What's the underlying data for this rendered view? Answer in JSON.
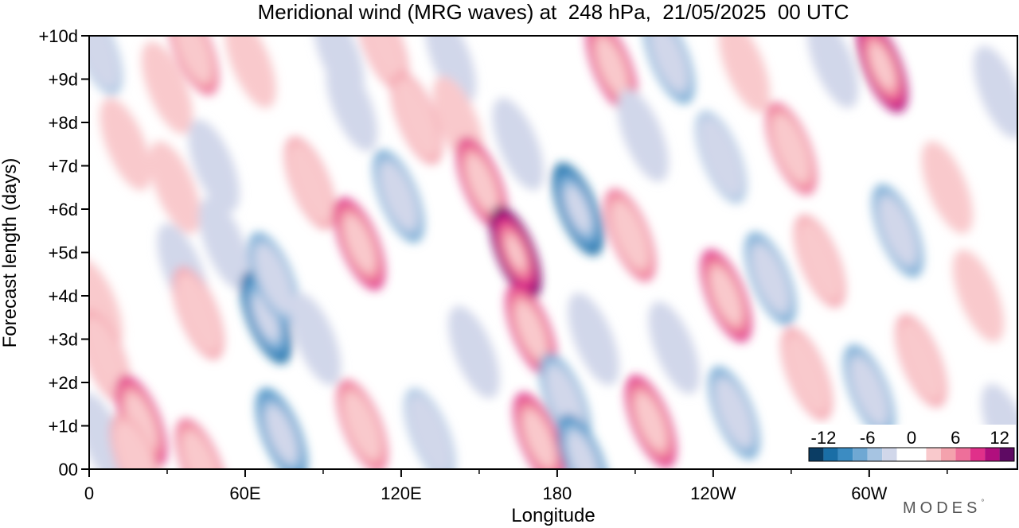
{
  "chart_data": {
    "type": "heatmap",
    "title": "Meridional wind (MRG waves) at  248 hPa,  21/05/2025  00 UTC",
    "xlabel": "Longitude",
    "ylabel": "Forecast length (days)",
    "x_ticks": [
      {
        "lon": 0,
        "label": "0"
      },
      {
        "lon": 60,
        "label": "60E"
      },
      {
        "lon": 120,
        "label": "120E"
      },
      {
        "lon": 180,
        "label": "180"
      },
      {
        "lon": 240,
        "label": "120W"
      },
      {
        "lon": 300,
        "label": "60W"
      }
    ],
    "xlim": [
      0,
      357
    ],
    "y_ticks": [
      {
        "day": 0,
        "label": "00"
      },
      {
        "day": 1,
        "label": "+1d"
      },
      {
        "day": 2,
        "label": "+2d"
      },
      {
        "day": 3,
        "label": "+3d"
      },
      {
        "day": 4,
        "label": "+4d"
      },
      {
        "day": 5,
        "label": "+5d"
      },
      {
        "day": 6,
        "label": "+6d"
      },
      {
        "day": 7,
        "label": "+7d"
      },
      {
        "day": 8,
        "label": "+8d"
      },
      {
        "day": 9,
        "label": "+9d"
      },
      {
        "day": 10,
        "label": "+10d"
      }
    ],
    "ylim": [
      0,
      10
    ],
    "colorbar": {
      "levels": [
        -14,
        -12,
        -10,
        -8,
        -6,
        -4,
        -2,
        2,
        4,
        6,
        8,
        10,
        12,
        14
      ],
      "colors": [
        "#0b3d64",
        "#1a6ea6",
        "#3c8cc2",
        "#6fa8d3",
        "#a6c4e2",
        "#d1d7ea",
        "#ffffff",
        "#f9c9cc",
        "#f4a2ad",
        "#ee6f9a",
        "#e0308a",
        "#b10f7e",
        "#5e0a63"
      ],
      "tick_values": [
        -12,
        -6,
        0,
        6,
        12
      ],
      "tick_labels": [
        "-12",
        "-6",
        "0",
        "6",
        "12"
      ]
    },
    "field": [
      {
        "lon": 3,
        "day": 9.7,
        "v": -6
      },
      {
        "lon": 3,
        "day": 3.8,
        "v": 3
      },
      {
        "lon": 6,
        "day": 2.6,
        "v": 4
      },
      {
        "lon": 5,
        "day": 0.7,
        "v": -4
      },
      {
        "lon": 14,
        "day": 7.5,
        "v": 3
      },
      {
        "lon": 20,
        "day": 1.1,
        "v": 9
      },
      {
        "lon": 18,
        "day": 0.2,
        "v": 4
      },
      {
        "lon": 30,
        "day": 8.8,
        "v": 3
      },
      {
        "lon": 33,
        "day": 6.5,
        "v": 3
      },
      {
        "lon": 36,
        "day": 4.6,
        "v": -3
      },
      {
        "lon": 40,
        "day": 9.7,
        "v": 6
      },
      {
        "lon": 42,
        "day": 3.6,
        "v": 5
      },
      {
        "lon": 43,
        "day": 0.1,
        "v": 7
      },
      {
        "lon": 48,
        "day": 7.0,
        "v": -3
      },
      {
        "lon": 52,
        "day": 5.2,
        "v": -4
      },
      {
        "lon": 62,
        "day": 9.4,
        "v": 3
      },
      {
        "lon": 68,
        "day": 3.5,
        "v": -11
      },
      {
        "lon": 71,
        "day": 4.4,
        "v": -8
      },
      {
        "lon": 74,
        "day": 0.8,
        "v": -9
      },
      {
        "lon": 85,
        "day": 6.6,
        "v": 4
      },
      {
        "lon": 87,
        "day": 3.0,
        "v": -4
      },
      {
        "lon": 96,
        "day": 9.6,
        "v": -4
      },
      {
        "lon": 101,
        "day": 8.4,
        "v": -4
      },
      {
        "lon": 104,
        "day": 5.2,
        "v": 9
      },
      {
        "lon": 105,
        "day": 1.0,
        "v": 6
      },
      {
        "lon": 113,
        "day": 9.8,
        "v": 4
      },
      {
        "lon": 119,
        "day": 6.3,
        "v": -8
      },
      {
        "lon": 126,
        "day": 8.1,
        "v": 4
      },
      {
        "lon": 131,
        "day": 0.8,
        "v": -5
      },
      {
        "lon": 139,
        "day": 9.5,
        "v": -3
      },
      {
        "lon": 142,
        "day": 8.0,
        "v": 3
      },
      {
        "lon": 151,
        "day": 6.6,
        "v": 9
      },
      {
        "lon": 148,
        "day": 2.7,
        "v": -3
      },
      {
        "lon": 164,
        "day": 5.0,
        "v": 12
      },
      {
        "lon": 170,
        "day": 3.2,
        "v": 9
      },
      {
        "lon": 173,
        "day": 0.7,
        "v": 9
      },
      {
        "lon": 165,
        "day": 7.5,
        "v": -3
      },
      {
        "lon": 183,
        "day": 1.6,
        "v": -7
      },
      {
        "lon": 188,
        "day": 6.0,
        "v": -11
      },
      {
        "lon": 190,
        "day": 0.2,
        "v": -9
      },
      {
        "lon": 194,
        "day": 3.0,
        "v": -4
      },
      {
        "lon": 201,
        "day": 9.3,
        "v": 9
      },
      {
        "lon": 208,
        "day": 5.4,
        "v": 7
      },
      {
        "lon": 216,
        "day": 1.1,
        "v": 8
      },
      {
        "lon": 213,
        "day": 7.7,
        "v": -3
      },
      {
        "lon": 223,
        "day": 9.5,
        "v": -7
      },
      {
        "lon": 225,
        "day": 2.8,
        "v": -4
      },
      {
        "lon": 243,
        "day": 7.2,
        "v": -6
      },
      {
        "lon": 245,
        "day": 4.0,
        "v": 8
      },
      {
        "lon": 248,
        "day": 1.3,
        "v": -7
      },
      {
        "lon": 252,
        "day": 9.3,
        "v": 3
      },
      {
        "lon": 262,
        "day": 4.4,
        "v": -7
      },
      {
        "lon": 270,
        "day": 7.4,
        "v": 7
      },
      {
        "lon": 276,
        "day": 2.2,
        "v": 4
      },
      {
        "lon": 281,
        "day": 4.8,
        "v": 5
      },
      {
        "lon": 286,
        "day": 9.4,
        "v": -4
      },
      {
        "lon": 300,
        "day": 1.8,
        "v": -7
      },
      {
        "lon": 305,
        "day": 9.3,
        "v": 11
      },
      {
        "lon": 311,
        "day": 5.5,
        "v": -7
      },
      {
        "lon": 320,
        "day": 2.5,
        "v": 4
      },
      {
        "lon": 330,
        "day": 6.5,
        "v": 3
      },
      {
        "lon": 342,
        "day": 4.0,
        "v": 3
      },
      {
        "lon": 350,
        "day": 8.7,
        "v": -3
      },
      {
        "lon": 353,
        "day": 0.9,
        "v": -3
      }
    ]
  },
  "branding": {
    "text": "MODES",
    "mark": "°"
  }
}
